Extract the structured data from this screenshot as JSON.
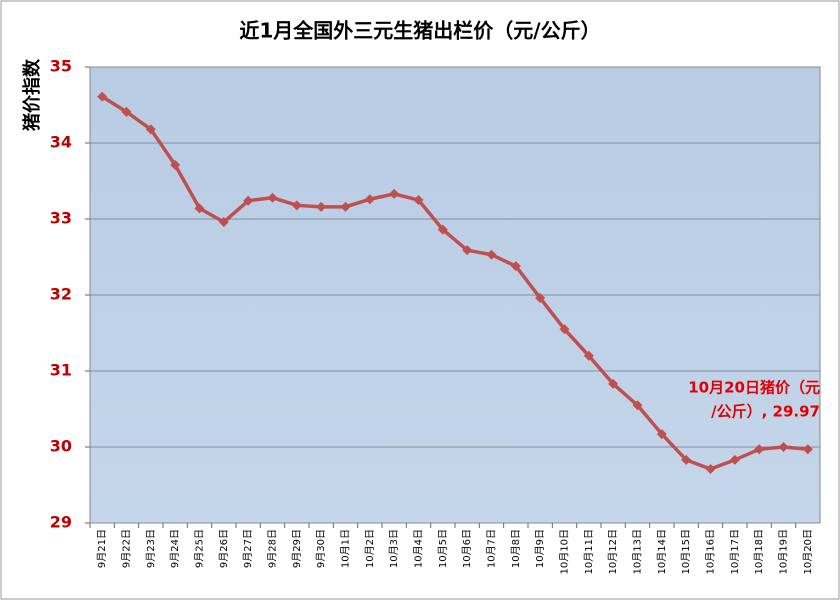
{
  "chart_data": {
    "type": "line",
    "title": "近1月全国外三元生猪出栏价（元/公斤）",
    "y_label": "猪价指数",
    "categories": [
      "9月21日",
      "9月22日",
      "9月23日",
      "9月24日",
      "9月25日",
      "9月26日",
      "9月27日",
      "9月28日",
      "9月29日",
      "9月30日",
      "10月1日",
      "10月2日",
      "10月3日",
      "10月4日",
      "10月5日",
      "10月6日",
      "10月7日",
      "10月8日",
      "10月9日",
      "10月10日",
      "10月11日",
      "10月12日",
      "10月13日",
      "10月14日",
      "10月15日",
      "10月16日",
      "10月17日",
      "10月18日",
      "10月19日",
      "10月20日"
    ],
    "series": [
      {
        "name": "猪价",
        "color": "#c0504d",
        "values": [
          34.61,
          34.41,
          34.18,
          33.71,
          33.14,
          32.96,
          33.24,
          33.28,
          33.18,
          33.16,
          33.16,
          33.26,
          33.33,
          33.25,
          32.86,
          32.59,
          32.53,
          32.38,
          31.96,
          31.55,
          31.2,
          30.83,
          30.55,
          30.17,
          29.83,
          29.71,
          29.83,
          29.97,
          30.0,
          29.97
        ]
      }
    ],
    "annotation": [
      "10月20日猪价（元",
      "/公斤）, 29.97"
    ],
    "ylim": [
      29,
      35
    ],
    "yticks": [
      29,
      30,
      31,
      32,
      33,
      34,
      35
    ],
    "grid": true
  }
}
